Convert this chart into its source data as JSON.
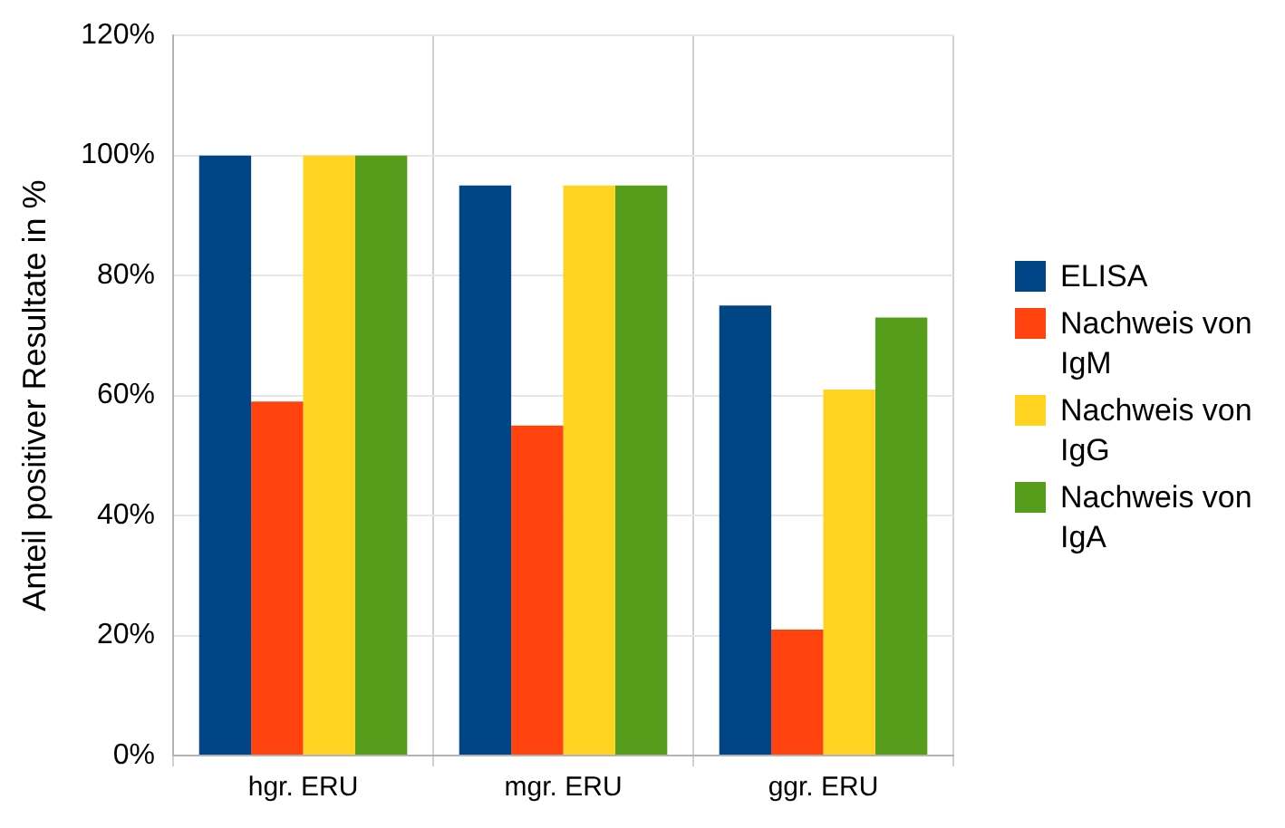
{
  "chart_data": {
    "type": "bar",
    "ylabel": "Anteil positiver Resultate in %",
    "categories": [
      "hgr. ERU",
      "mgr. ERU",
      "ggr. ERU"
    ],
    "series": [
      {
        "name": "ELISA",
        "color": "#004586",
        "values": [
          100,
          95,
          75
        ]
      },
      {
        "name": "Nachweis von IgM",
        "color": "#ff420e",
        "values": [
          59,
          55,
          21
        ]
      },
      {
        "name": "Nachweis von IgG",
        "color": "#ffd320",
        "values": [
          100,
          95,
          61
        ]
      },
      {
        "name": "Nachweis von IgA",
        "color": "#579d1c",
        "values": [
          100,
          95,
          73
        ]
      }
    ],
    "ylim": [
      0,
      120
    ],
    "yticks": [
      {
        "value": 0,
        "label": "0%"
      },
      {
        "value": 20,
        "label": "20%"
      },
      {
        "value": 40,
        "label": "40%"
      },
      {
        "value": 60,
        "label": "60%"
      },
      {
        "value": 80,
        "label": "80%"
      },
      {
        "value": 100,
        "label": "100%"
      },
      {
        "value": 120,
        "label": "120%"
      }
    ],
    "grid": true,
    "legend": "right"
  }
}
